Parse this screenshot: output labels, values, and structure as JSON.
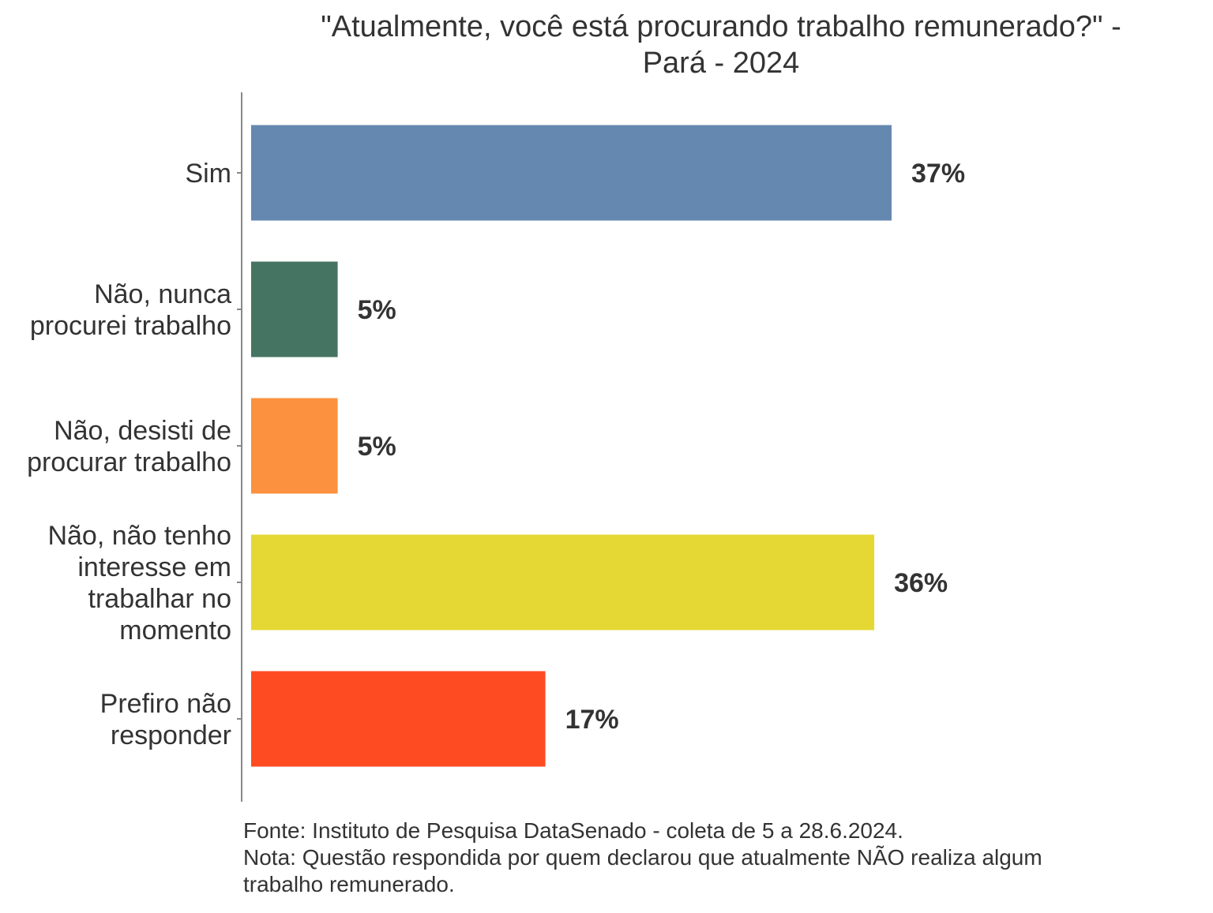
{
  "chart_data": {
    "type": "bar",
    "orientation": "horizontal",
    "title": [
      "\"Atualmente, você está procurando trabalho remunerado?\" -",
      "Pará - 2024"
    ],
    "xlabel": "",
    "ylabel": "",
    "xlim": [
      0,
      37
    ],
    "grid": false,
    "categories": [
      [
        "Sim"
      ],
      [
        "Não, nunca",
        "procurei trabalho"
      ],
      [
        "Não, desisti de",
        "procurar trabalho"
      ],
      [
        "Não, não tenho",
        "interesse em",
        "trabalhar no",
        "momento"
      ],
      [
        "Prefiro não",
        "responder"
      ]
    ],
    "values": [
      37,
      5,
      5,
      36,
      17
    ],
    "value_labels": [
      "37%",
      "5%",
      "5%",
      "36%",
      "17%"
    ],
    "colors": [
      "#6588b0",
      "#467462",
      "#fc913f",
      "#e5d835",
      "#ff4b22"
    ],
    "unit": "%"
  },
  "footer": [
    "Fonte: Instituto de Pesquisa DataSenado - coleta de 5 a 28.6.2024.",
    "Nota: Questão respondida por quem declarou que atualmente NÃO realiza algum",
    "trabalho remunerado."
  ]
}
